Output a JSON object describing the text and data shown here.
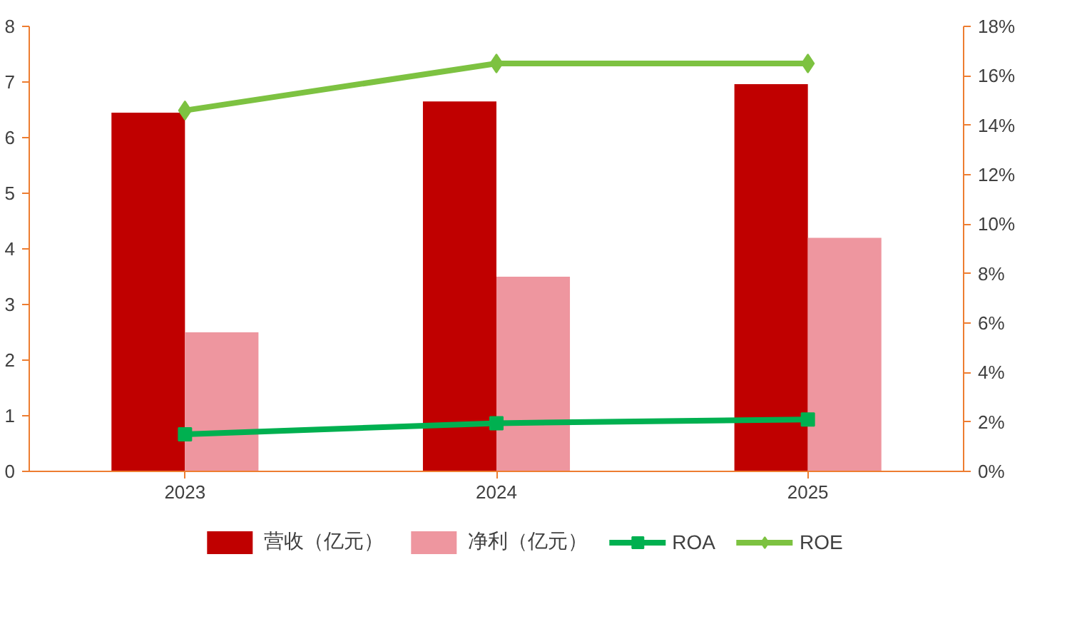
{
  "chart_data": {
    "type": "bar",
    "categories": [
      "2023",
      "2024",
      "2025"
    ],
    "ylim": [
      0,
      8
    ],
    "yticks": [
      0,
      1,
      2,
      3,
      4,
      5,
      6,
      7,
      8
    ],
    "y2lim": [
      0,
      18
    ],
    "y2ticks": [
      {
        "value": 0,
        "label": "0%"
      },
      {
        "value": 2,
        "label": "2%"
      },
      {
        "value": 4,
        "label": "4%"
      },
      {
        "value": 6,
        "label": "6%"
      },
      {
        "value": 8,
        "label": "8%"
      },
      {
        "value": 10,
        "label": "10%"
      },
      {
        "value": 12,
        "label": "12%"
      },
      {
        "value": 14,
        "label": "14%"
      },
      {
        "value": 16,
        "label": "16%"
      },
      {
        "value": 18,
        "label": "18%"
      }
    ],
    "series": [
      {
        "name": "营收（亿元）",
        "color": "#c00000",
        "values": [
          6.45,
          6.65,
          6.96
        ]
      },
      {
        "name": "净利（亿元）",
        "color": "#ee969f",
        "values": [
          2.5,
          3.5,
          4.2
        ]
      },
      {
        "name": "ROA",
        "type": "line",
        "axis": "y2",
        "color": "#00b050",
        "marker": "square",
        "values": [
          1.5,
          1.95,
          2.1
        ]
      },
      {
        "name": "ROE",
        "type": "line",
        "axis": "y2",
        "color": "#7dc241",
        "marker": "diamond",
        "values": [
          14.6,
          16.5,
          16.5
        ]
      }
    ],
    "grid": false,
    "legend": "bottom"
  }
}
